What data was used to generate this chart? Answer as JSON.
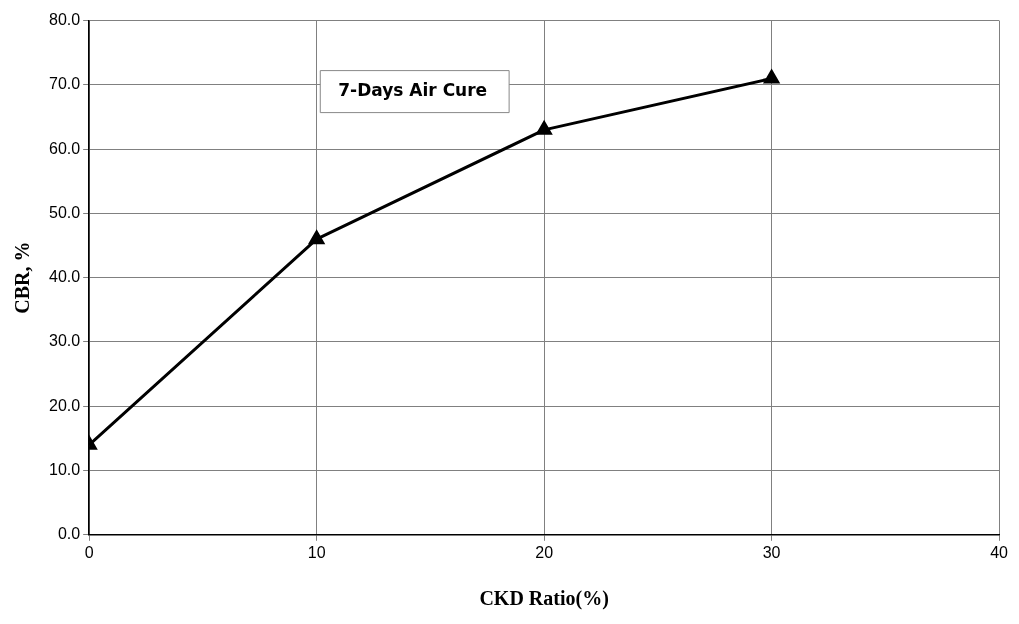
{
  "chart_data": {
    "type": "line",
    "xlabel": "CKD Ratio(%)",
    "ylabel": "CBR, %",
    "annotations": [
      "7-Days Air Cure"
    ],
    "x": [
      0,
      10,
      20,
      30
    ],
    "series": [
      {
        "color": "#000000",
        "values": [
          14,
          46,
          63,
          71
        ]
      }
    ],
    "xlim": [
      0,
      40
    ],
    "xticks": [
      0,
      10,
      20,
      30,
      40
    ],
    "ylim": [
      0,
      80
    ],
    "yticks": [
      {
        "value": 0,
        "label": "0.0"
      },
      {
        "value": 10,
        "label": "10.0"
      },
      {
        "value": 20,
        "label": "20.0"
      },
      {
        "value": 30,
        "label": "30.0"
      },
      {
        "value": 40,
        "label": "40.0"
      },
      {
        "value": 50,
        "label": "50.0"
      },
      {
        "value": 60,
        "label": "60.0"
      },
      {
        "value": 70,
        "label": "70.0"
      },
      {
        "value": 80,
        "label": "80.0"
      }
    ],
    "grid": true,
    "legend": false,
    "marker": "triangle",
    "line_style": "solid"
  }
}
